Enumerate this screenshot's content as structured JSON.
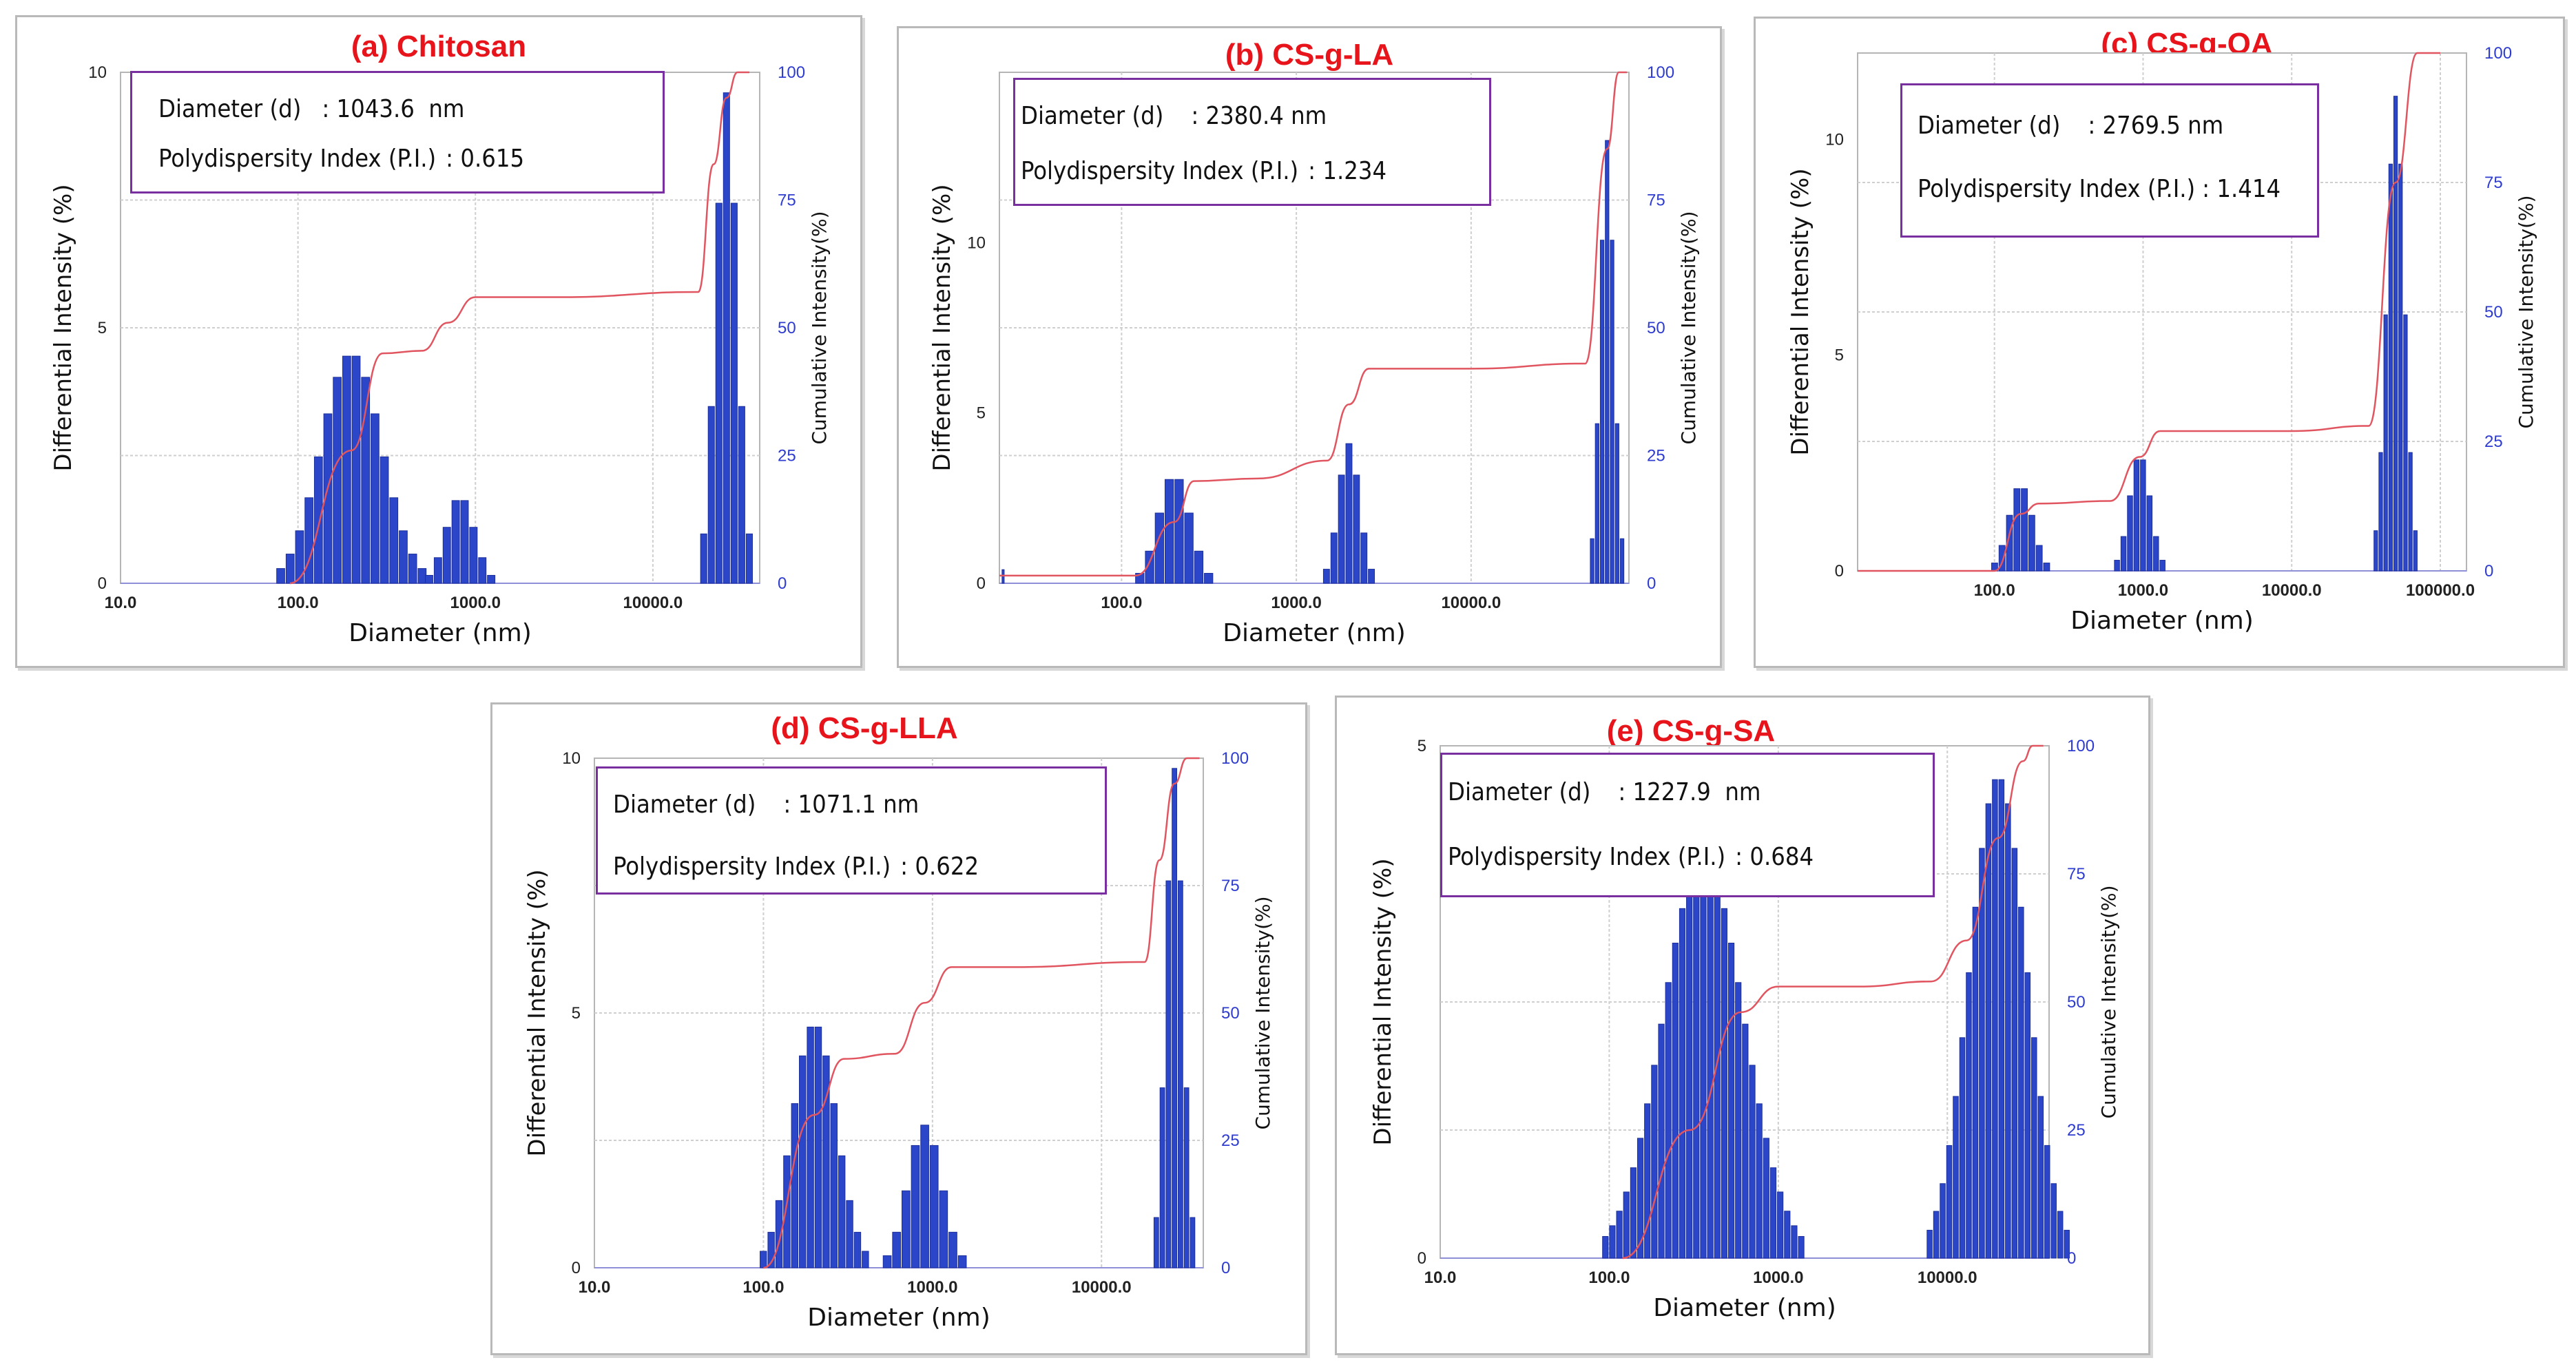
{
  "charts": [
    {
      "id": "a",
      "title": "(a) Chitosan",
      "info": {
        "diameter_label": "Diameter (d)",
        "diameter_value": ": 1043.6  nm",
        "pdi_label": "Polydispersity Index (P.I.)",
        "pdi_value": ": 0.615"
      },
      "x_ticks": [
        "10.0",
        "100.0",
        "1000.0",
        "10000.0"
      ],
      "y_ticks": [
        "0",
        "5",
        "10"
      ],
      "y2_ticks": [
        "0",
        "25",
        "50",
        "75",
        "100"
      ],
      "xlabel": "Diameter (nm)",
      "ylabel": "Differential Intensity (%)",
      "y2label": "Cumulative Intensity(%)"
    },
    {
      "id": "b",
      "title": "(b) CS-g-LA",
      "info": {
        "diameter_label": "Diameter (d)",
        "diameter_value": ": 2380.4 nm",
        "pdi_label": "Polydispersity Index (P.I.)",
        "pdi_value": ": 1.234"
      },
      "x_ticks": [
        "100.0",
        "1000.0",
        "10000.0"
      ],
      "y_ticks": [
        "0",
        "5",
        "10"
      ],
      "y2_ticks": [
        "0",
        "25",
        "50",
        "75",
        "100"
      ],
      "xlabel": "Diameter (nm)",
      "ylabel": "Differential Intensity (%)",
      "y2label": "Cumulative Intensity(%)"
    },
    {
      "id": "c",
      "title": "(c) CS-g-OA",
      "info": {
        "diameter_label": "Diameter (d)",
        "diameter_value": ": 2769.5 nm",
        "pdi_label": "Polydispersity Index (P.I.)",
        "pdi_value": ": 1.414"
      },
      "x_ticks": [
        "100.0",
        "1000.0",
        "10000.0",
        "100000.0"
      ],
      "y_ticks": [
        "0",
        "5",
        "10"
      ],
      "y2_ticks": [
        "0",
        "25",
        "50",
        "75",
        "100"
      ],
      "xlabel": "Diameter (nm)",
      "ylabel": "Differential Intensity (%)",
      "y2label": "Cumulative Intensity(%)"
    },
    {
      "id": "d",
      "title": "(d) CS-g-LLA",
      "info": {
        "diameter_label": "Diameter (d)",
        "diameter_value": ": 1071.1 nm",
        "pdi_label": "Polydispersity Index (P.I.)",
        "pdi_value": ": 0.622"
      },
      "x_ticks": [
        "10.0",
        "100.0",
        "1000.0",
        "10000.0"
      ],
      "y_ticks": [
        "0",
        "5",
        "10"
      ],
      "y2_ticks": [
        "0",
        "25",
        "50",
        "75",
        "100"
      ],
      "xlabel": "Diameter (nm)",
      "ylabel": "Differential Intensity (%)",
      "y2label": "Cumulative Intensity(%)"
    },
    {
      "id": "e",
      "title": "(e) CS-g-SA",
      "info": {
        "diameter_label": "Diameter (d)",
        "diameter_value": ": 1227.9  nm",
        "pdi_label": "Polydispersity Index (P.I.)",
        "pdi_value": ": 0.684"
      },
      "x_ticks": [
        "10.0",
        "100.0",
        "1000.0",
        "10000.0"
      ],
      "y_ticks": [
        "0",
        "5"
      ],
      "y2_ticks": [
        "0",
        "25",
        "50",
        "75",
        "100"
      ],
      "xlabel": "Diameter (nm)",
      "ylabel": "Differential Intensity (%)",
      "y2label": "Cumulative Intensity(%)"
    }
  ],
  "chart_data": [
    {
      "type": "bar",
      "id": "a",
      "title": "(a) Chitosan",
      "xscale": "log",
      "xlim": [
        10,
        40000
      ],
      "ylim": [
        0,
        10
      ],
      "y2lim": [
        0,
        100
      ],
      "peaks": [
        {
          "center": 200,
          "sigma": 0.17,
          "height": 4.5,
          "n": 16
        },
        {
          "center": 820,
          "sigma": 0.08,
          "height": 1.7,
          "n": 8
        },
        {
          "center": 26000,
          "sigma": 0.06,
          "height": 9.6,
          "n": 7
        }
      ],
      "cumulative": [
        [
          90,
          0
        ],
        [
          200,
          26
        ],
        [
          300,
          45
        ],
        [
          500,
          45.5
        ],
        [
          700,
          51
        ],
        [
          1000,
          56
        ],
        [
          3000,
          56
        ],
        [
          18000,
          57
        ],
        [
          22000,
          82
        ],
        [
          26000,
          95
        ],
        [
          30000,
          100
        ],
        [
          35000,
          100
        ]
      ]
    },
    {
      "type": "bar",
      "id": "b",
      "title": "(b) CS-g-LA",
      "xscale": "log",
      "xlim": [
        20,
        80000
      ],
      "ylim": [
        0,
        15
      ],
      "y2lim": [
        0,
        100
      ],
      "peaks": [
        {
          "center": 200,
          "sigma": 0.09,
          "height": 3.2,
          "n": 8
        },
        {
          "center": 2000,
          "sigma": 0.06,
          "height": 4.1,
          "n": 7
        },
        {
          "center": 60000,
          "sigma": 0.04,
          "height": 13.0,
          "n": 7
        },
        {
          "center": 21,
          "sigma": 0.01,
          "height": 0.4,
          "n": 1
        }
      ],
      "cumulative": [
        [
          20,
          1.5
        ],
        [
          120,
          1.5
        ],
        [
          200,
          12
        ],
        [
          260,
          20
        ],
        [
          600,
          20.5
        ],
        [
          1500,
          24
        ],
        [
          2000,
          35
        ],
        [
          2600,
          42
        ],
        [
          10000,
          42
        ],
        [
          45000,
          43
        ],
        [
          60000,
          85
        ],
        [
          70000,
          100
        ],
        [
          78000,
          100
        ]
      ]
    },
    {
      "type": "bar",
      "id": "c",
      "title": "(c) CS-g-OA",
      "xscale": "log",
      "xlim": [
        12,
        150000
      ],
      "ylim": [
        0,
        12
      ],
      "y2lim": [
        0,
        100
      ],
      "peaks": [
        {
          "center": 150,
          "sigma": 0.08,
          "height": 2.0,
          "n": 8
        },
        {
          "center": 950,
          "sigma": 0.07,
          "height": 2.7,
          "n": 8
        },
        {
          "center": 50000,
          "sigma": 0.06,
          "height": 11.0,
          "n": 9
        }
      ],
      "cumulative": [
        [
          12,
          0
        ],
        [
          100,
          0
        ],
        [
          150,
          11
        ],
        [
          200,
          13
        ],
        [
          600,
          13.5
        ],
        [
          950,
          22
        ],
        [
          1300,
          27
        ],
        [
          10000,
          27
        ],
        [
          33000,
          28
        ],
        [
          50000,
          75
        ],
        [
          70000,
          100
        ],
        [
          100000,
          100
        ]
      ]
    },
    {
      "type": "bar",
      "id": "d",
      "title": "(d) CS-g-LLA",
      "xscale": "log",
      "xlim": [
        10,
        40000
      ],
      "ylim": [
        0,
        10
      ],
      "y2lim": [
        0,
        100
      ],
      "peaks": [
        {
          "center": 200,
          "sigma": 0.13,
          "height": 4.8,
          "n": 14
        },
        {
          "center": 900,
          "sigma": 0.1,
          "height": 2.8,
          "n": 9
        },
        {
          "center": 27000,
          "sigma": 0.05,
          "height": 9.8,
          "n": 7
        }
      ],
      "cumulative": [
        [
          100,
          0
        ],
        [
          200,
          30
        ],
        [
          300,
          41
        ],
        [
          600,
          42
        ],
        [
          900,
          52
        ],
        [
          1300,
          59
        ],
        [
          3000,
          59
        ],
        [
          18000,
          60
        ],
        [
          22000,
          80
        ],
        [
          27000,
          95
        ],
        [
          32000,
          100
        ],
        [
          38000,
          100
        ]
      ]
    },
    {
      "type": "bar",
      "id": "e",
      "title": "(e) CS-g-SA",
      "xscale": "log",
      "xlim": [
        10,
        40000
      ],
      "ylim": [
        0,
        5
      ],
      "y2lim": [
        0,
        100
      ],
      "peaks": [
        {
          "center": 360,
          "sigma": 0.24,
          "height": 3.9,
          "n": 29
        },
        {
          "center": 20000,
          "sigma": 0.17,
          "height": 4.7,
          "n": 22
        }
      ],
      "cumulative": [
        [
          120,
          0
        ],
        [
          300,
          25
        ],
        [
          600,
          48
        ],
        [
          1000,
          53
        ],
        [
          3000,
          53
        ],
        [
          8000,
          54
        ],
        [
          13000,
          62
        ],
        [
          20000,
          82
        ],
        [
          28000,
          97
        ],
        [
          32000,
          100
        ],
        [
          37000,
          100
        ]
      ]
    }
  ]
}
